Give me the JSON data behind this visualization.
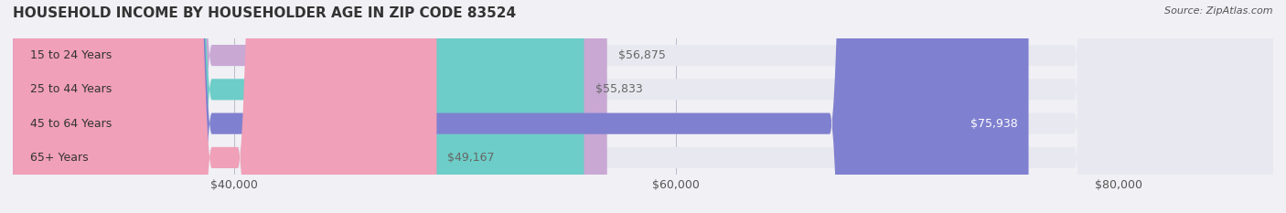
{
  "title": "HOUSEHOLD INCOME BY HOUSEHOLDER AGE IN ZIP CODE 83524",
  "source": "Source: ZipAtlas.com",
  "categories": [
    "15 to 24 Years",
    "25 to 44 Years",
    "45 to 64 Years",
    "65+ Years"
  ],
  "values": [
    56875,
    55833,
    75938,
    49167
  ],
  "bar_colors": [
    "#c9a8d4",
    "#6dcdc8",
    "#8080d0",
    "#f0a0b8"
  ],
  "label_colors": [
    "#666666",
    "#666666",
    "#ffffff",
    "#666666"
  ],
  "xmin": 30000,
  "xmax": 87000,
  "xticks": [
    40000,
    60000,
    80000
  ],
  "xtick_labels": [
    "$40,000",
    "$60,000",
    "$80,000"
  ],
  "background_color": "#f0f0f5",
  "bar_background_color": "#e8e8f0",
  "title_fontsize": 11,
  "source_fontsize": 8,
  "tick_fontsize": 9,
  "label_fontsize": 9,
  "category_fontsize": 9
}
